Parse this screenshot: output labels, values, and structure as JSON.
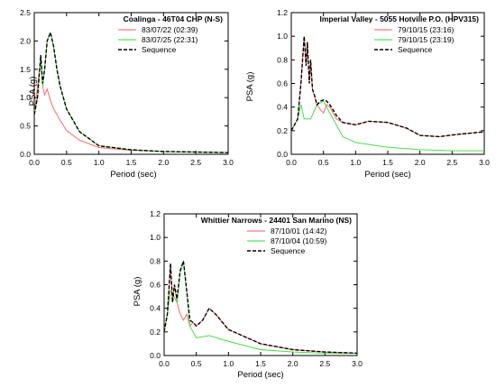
{
  "chart_data": [
    {
      "type": "line",
      "title": "Coalinga - 46T04 CHP (N-S)",
      "xlabel": "Period (sec)",
      "ylabel": "PSA (g)",
      "xlim": [
        0,
        3.0
      ],
      "ylim": [
        0,
        2.5
      ],
      "xticks": [
        "0.0",
        "0.5",
        "1.0",
        "1.5",
        "2.0",
        "2.5",
        "3.0"
      ],
      "yticks": [
        "0.0",
        "0.5",
        "1.0",
        "1.5",
        "2.0",
        "2.5"
      ],
      "legend_position": "top-right",
      "colors": {
        "s1": "#ff5a5a",
        "s2": "#33dd33",
        "seq": "#000000"
      },
      "series": [
        {
          "name": "83/07/22 (02:39)",
          "style": "solid",
          "color": "#ff5a5a",
          "x": [
            0.0,
            0.05,
            0.1,
            0.13,
            0.16,
            0.2,
            0.25,
            0.3,
            0.4,
            0.5,
            0.7,
            1.0,
            1.5,
            2.0,
            2.5,
            3.0
          ],
          "y": [
            0.7,
            1.2,
            1.7,
            1.2,
            1.05,
            1.15,
            0.95,
            0.8,
            0.6,
            0.42,
            0.25,
            0.12,
            0.07,
            0.05,
            0.04,
            0.03
          ]
        },
        {
          "name": "83/07/25 (22:31)",
          "style": "solid",
          "color": "#33dd33",
          "x": [
            0.0,
            0.05,
            0.1,
            0.13,
            0.16,
            0.2,
            0.25,
            0.3,
            0.35,
            0.4,
            0.5,
            0.7,
            1.0,
            1.5,
            2.0,
            2.5,
            3.0
          ],
          "y": [
            0.7,
            1.0,
            1.75,
            1.2,
            1.5,
            2.0,
            2.15,
            1.9,
            1.5,
            1.2,
            0.8,
            0.4,
            0.15,
            0.08,
            0.05,
            0.04,
            0.03
          ]
        },
        {
          "name": "Sequence",
          "style": "dashed",
          "color": "#000000",
          "x": [
            0.0,
            0.05,
            0.1,
            0.13,
            0.16,
            0.2,
            0.25,
            0.3,
            0.35,
            0.4,
            0.5,
            0.7,
            1.0,
            1.5,
            2.0,
            2.5,
            3.0
          ],
          "y": [
            0.7,
            1.0,
            1.75,
            1.25,
            1.5,
            2.0,
            2.15,
            1.9,
            1.5,
            1.2,
            0.8,
            0.4,
            0.15,
            0.08,
            0.05,
            0.04,
            0.03
          ]
        }
      ]
    },
    {
      "type": "line",
      "title": "Imperial Valley - 5055 Hotville P.O. (HPV315)",
      "xlabel": "Period (sec)",
      "ylabel": "PSA (g)",
      "xlim": [
        0,
        3.0
      ],
      "ylim": [
        0,
        1.2
      ],
      "xticks": [
        "0.0",
        "0.5",
        "1.0",
        "1.5",
        "2.0",
        "2.5",
        "3.0"
      ],
      "yticks": [
        "0.0",
        "0.2",
        "0.4",
        "0.6",
        "0.8",
        "1.0",
        "1.2"
      ],
      "legend_position": "top-right",
      "colors": {
        "s1": "#ff5a5a",
        "s2": "#33dd33",
        "seq": "#000000"
      },
      "series": [
        {
          "name": "79/10/15 (23:16)",
          "style": "solid",
          "color": "#ff5a5a",
          "x": [
            0.0,
            0.1,
            0.15,
            0.2,
            0.23,
            0.25,
            0.28,
            0.3,
            0.33,
            0.36,
            0.4,
            0.45,
            0.5,
            0.55,
            0.6,
            0.7,
            0.8,
            1.0,
            1.2,
            1.5,
            1.8,
            2.0,
            2.3,
            2.6,
            3.0
          ],
          "y": [
            0.2,
            0.3,
            0.6,
            1.0,
            0.75,
            0.95,
            0.6,
            0.8,
            0.55,
            0.5,
            0.42,
            0.38,
            0.35,
            0.42,
            0.4,
            0.3,
            0.27,
            0.25,
            0.28,
            0.27,
            0.22,
            0.16,
            0.15,
            0.17,
            0.19
          ]
        },
        {
          "name": "79/10/15 (23:19)",
          "style": "solid",
          "color": "#33dd33",
          "x": [
            0.0,
            0.1,
            0.15,
            0.2,
            0.3,
            0.4,
            0.5,
            0.6,
            0.7,
            0.8,
            1.0,
            1.5,
            2.0,
            2.5,
            3.0
          ],
          "y": [
            0.2,
            0.3,
            0.42,
            0.3,
            0.3,
            0.42,
            0.45,
            0.35,
            0.25,
            0.15,
            0.1,
            0.06,
            0.04,
            0.03,
            0.03
          ]
        },
        {
          "name": "Sequence",
          "style": "dashed",
          "color": "#000000",
          "x": [
            0.0,
            0.1,
            0.15,
            0.2,
            0.23,
            0.25,
            0.28,
            0.3,
            0.33,
            0.36,
            0.4,
            0.45,
            0.5,
            0.55,
            0.6,
            0.7,
            0.8,
            1.0,
            1.2,
            1.5,
            1.8,
            2.0,
            2.3,
            2.6,
            3.0
          ],
          "y": [
            0.2,
            0.3,
            0.6,
            1.0,
            0.75,
            0.95,
            0.6,
            0.8,
            0.55,
            0.5,
            0.42,
            0.45,
            0.46,
            0.45,
            0.42,
            0.33,
            0.27,
            0.25,
            0.28,
            0.27,
            0.22,
            0.16,
            0.15,
            0.17,
            0.19
          ]
        }
      ]
    },
    {
      "type": "line",
      "title": "Whittier Narrows - 24401 San Marino (NS)",
      "xlabel": "Period (sec)",
      "ylabel": "PSA (g)",
      "xlim": [
        0,
        3.0
      ],
      "ylim": [
        0,
        1.2
      ],
      "xticks": [
        "0.0",
        "0.5",
        "1.0",
        "1.5",
        "2.0",
        "2.5",
        "3.0"
      ],
      "yticks": [
        "0.0",
        "0.2",
        "0.4",
        "0.6",
        "0.8",
        "1.0",
        "1.2"
      ],
      "legend_position": "top-right",
      "colors": {
        "s1": "#ff5a5a",
        "s2": "#33dd33",
        "seq": "#000000"
      },
      "series": [
        {
          "name": "87/10/01 (14:42)",
          "style": "solid",
          "color": "#ff5a5a",
          "x": [
            0.0,
            0.05,
            0.1,
            0.13,
            0.16,
            0.2,
            0.25,
            0.3,
            0.35,
            0.4,
            0.45,
            0.5,
            0.6,
            0.7,
            0.8,
            1.0,
            1.5,
            2.0,
            2.5,
            3.0
          ],
          "y": [
            0.2,
            0.35,
            0.78,
            0.45,
            0.6,
            0.45,
            0.35,
            0.3,
            0.35,
            0.25,
            0.28,
            0.25,
            0.3,
            0.4,
            0.35,
            0.22,
            0.1,
            0.05,
            0.03,
            0.02
          ]
        },
        {
          "name": "87/10/04 (10:59)",
          "style": "solid",
          "color": "#33dd33",
          "x": [
            0.0,
            0.05,
            0.1,
            0.15,
            0.2,
            0.25,
            0.3,
            0.35,
            0.4,
            0.5,
            0.7,
            1.0,
            1.5,
            2.0,
            2.5,
            3.0
          ],
          "y": [
            0.2,
            0.35,
            0.55,
            0.5,
            0.45,
            0.7,
            0.8,
            0.55,
            0.25,
            0.15,
            0.17,
            0.12,
            0.05,
            0.03,
            0.02,
            0.02
          ]
        },
        {
          "name": "Sequence",
          "style": "dashed",
          "color": "#000000",
          "x": [
            0.0,
            0.05,
            0.1,
            0.13,
            0.16,
            0.2,
            0.25,
            0.3,
            0.35,
            0.4,
            0.45,
            0.5,
            0.6,
            0.7,
            0.8,
            1.0,
            1.5,
            2.0,
            2.5,
            3.0
          ],
          "y": [
            0.2,
            0.35,
            0.78,
            0.45,
            0.6,
            0.48,
            0.72,
            0.8,
            0.55,
            0.3,
            0.28,
            0.25,
            0.3,
            0.4,
            0.35,
            0.22,
            0.1,
            0.05,
            0.03,
            0.02
          ]
        }
      ]
    }
  ]
}
